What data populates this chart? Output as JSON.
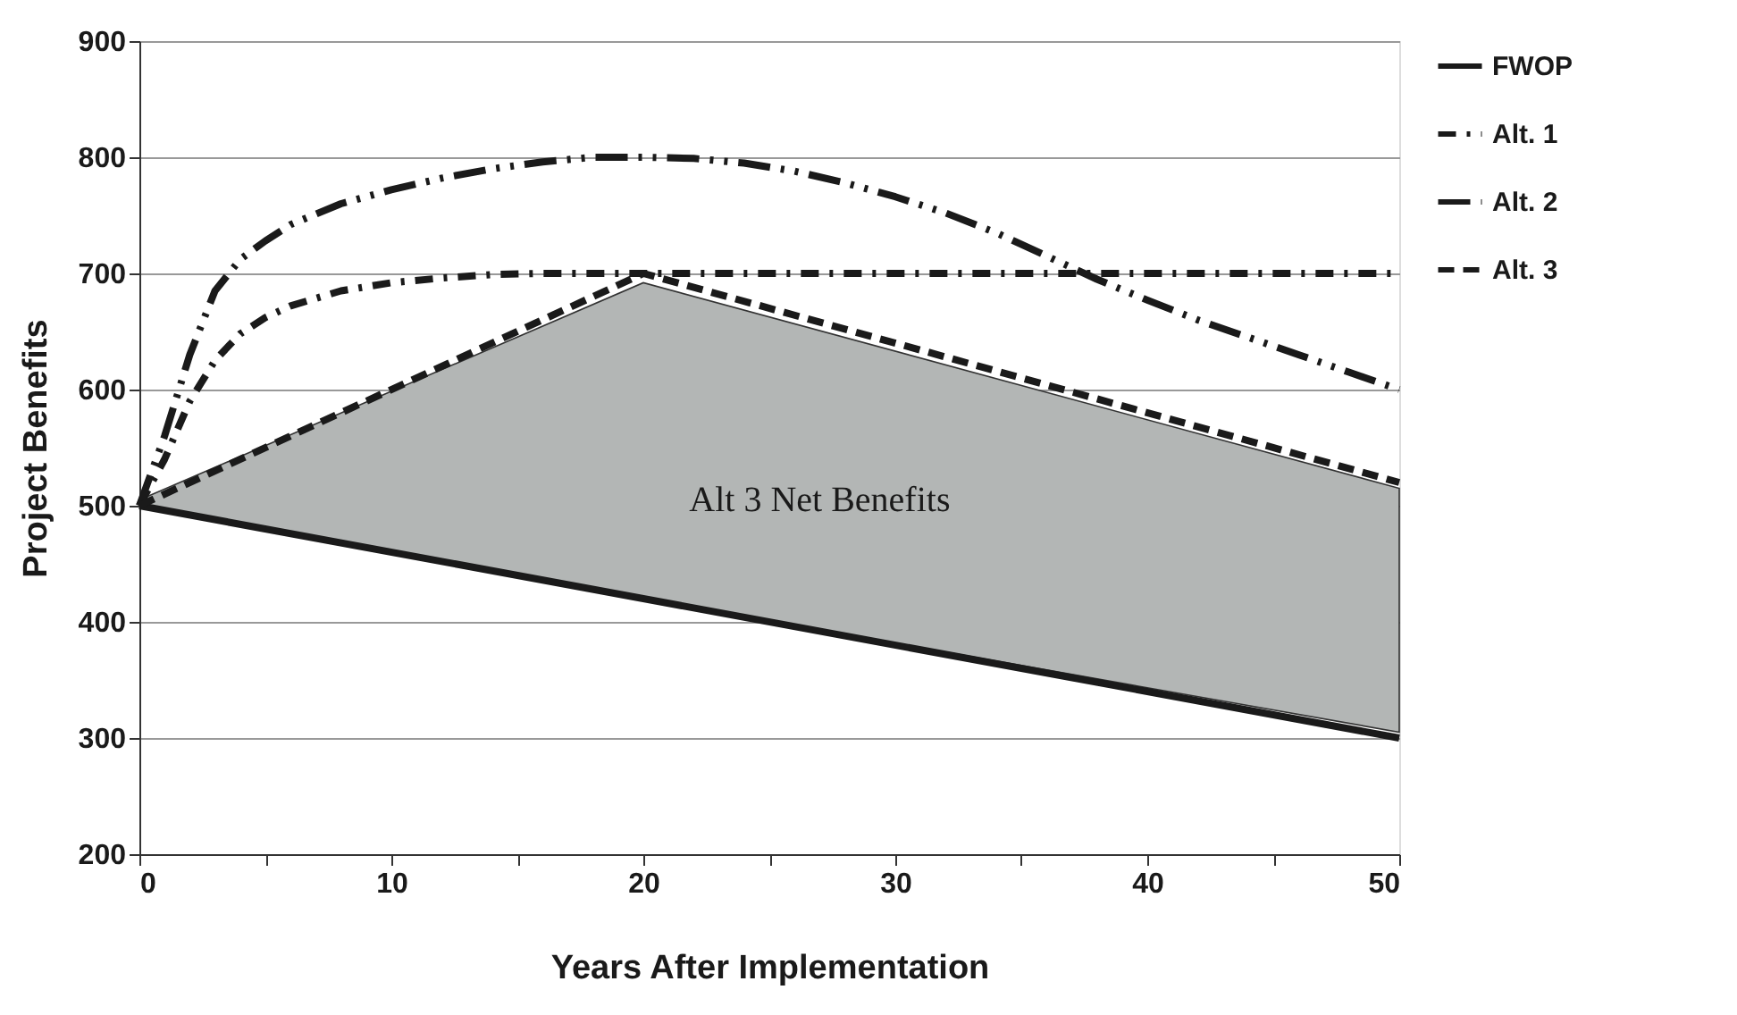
{
  "chart_data": {
    "type": "line",
    "xlabel": "Years After Implementation",
    "ylabel": "Project Benefits",
    "xlim": [
      0,
      50
    ],
    "ylim": [
      200,
      900
    ],
    "xticks": [
      0,
      {
        "value": 5,
        "label": null
      },
      10,
      {
        "value": 15,
        "label": null
      },
      20,
      {
        "value": 25,
        "label": null
      },
      30,
      {
        "value": 35,
        "label": null
      },
      40,
      {
        "value": 45,
        "label": null
      },
      50
    ],
    "yticks": [
      200,
      300,
      400,
      500,
      600,
      700,
      800,
      900
    ],
    "grid": "y",
    "legend": "right",
    "series": [
      {
        "name": "FWOP",
        "color": "#1a1a1a",
        "line_style": "solid",
        "x": [
          0,
          50
        ],
        "values": [
          500,
          300
        ]
      },
      {
        "name": "Alt. 1",
        "color": "#1a1a1a",
        "line_style": "dashdot",
        "x": [
          0,
          1,
          2,
          3,
          4,
          5,
          6,
          8,
          10,
          12,
          14,
          16,
          18,
          20,
          25,
          30,
          35,
          40,
          45,
          50
        ],
        "values": [
          500,
          540,
          590,
          625,
          648,
          662,
          672,
          685,
          692,
          696,
          699,
          700,
          700,
          700,
          700,
          700,
          700,
          700,
          700,
          700
        ]
      },
      {
        "name": "Alt. 2",
        "color": "#1a1a1a",
        "line_style": "longdashdot",
        "x": [
          0,
          1,
          2,
          3,
          4,
          5,
          6,
          8,
          10,
          12,
          14,
          16,
          18,
          20,
          22,
          24,
          26,
          28,
          30,
          32,
          34,
          36,
          38,
          40,
          42,
          44,
          46,
          48,
          50
        ],
        "values": [
          500,
          560,
          630,
          685,
          712,
          728,
          742,
          760,
          772,
          782,
          790,
          796,
          800,
          800,
          799,
          795,
          788,
          778,
          766,
          752,
          735,
          715,
          695,
          677,
          660,
          645,
          630,
          615,
          600
        ]
      },
      {
        "name": "Alt. 3",
        "color": "#1a1a1a",
        "line_style": "dashed",
        "x": [
          0,
          20,
          50
        ],
        "values": [
          500,
          700,
          520
        ],
        "lower": [
          500,
          420,
          305
        ],
        "upper": [
          505,
          692,
          515
        ]
      }
    ],
    "annotations": [
      "Alt 3 Net Benefits"
    ]
  }
}
